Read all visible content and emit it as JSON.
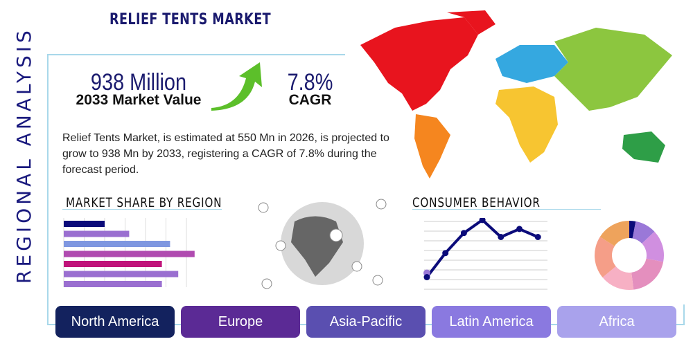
{
  "title": "RELIEF TENTS MARKET",
  "side_label": "REGIONAL ANALYSIS",
  "market_value": {
    "value": "938 Million",
    "label": "2033 Market Value"
  },
  "cagr": {
    "value": "7.8%",
    "label": "CAGR"
  },
  "description": "Relief Tents Market, is estimated at 550 Mn in 2026, is projected to grow to 938 Mn by 2033, registering a CAGR of 7.8% during the forecast period.",
  "market_share": {
    "heading": "MARKET SHARE BY REGION",
    "bars": [
      {
        "value": 20,
        "color": "#0b0b7a"
      },
      {
        "value": 32,
        "color": "#9a6fd0"
      },
      {
        "value": 52,
        "color": "#7f97e0"
      },
      {
        "value": 64,
        "color": "#b04bb0"
      },
      {
        "value": 48,
        "color": "#c0137a"
      },
      {
        "value": 56,
        "color": "#9a6fd0"
      },
      {
        "value": 48,
        "color": "#9a6fd0"
      }
    ]
  },
  "consumer_behavior": {
    "heading": "CONSUMER BEHAVIOR",
    "line": [
      1,
      3.4,
      5.4,
      6.7,
      5,
      5.8,
      5
    ],
    "donut": [
      {
        "value": 3,
        "color": "#0b0b7a"
      },
      {
        "value": 10,
        "color": "#9a78d8"
      },
      {
        "value": 15,
        "color": "#d08fe0"
      },
      {
        "value": 20,
        "color": "#e48fbe"
      },
      {
        "value": 16,
        "color": "#f7b0c4"
      },
      {
        "value": 20,
        "color": "#f59e88"
      },
      {
        "value": 16,
        "color": "#eea35c"
      }
    ]
  },
  "regions": [
    {
      "label": "North America",
      "color": "#13225e"
    },
    {
      "label": "Europe",
      "color": "#5b2a95"
    },
    {
      "label": "Asia-Pacific",
      "color": "#5a4fb0"
    },
    {
      "label": "Latin America",
      "color": "#8a79e0"
    },
    {
      "label": "Africa",
      "color": "#a9a2ec"
    }
  ],
  "colors": {
    "navy": "#1a1a6e",
    "frame": "#a8d8ea"
  }
}
